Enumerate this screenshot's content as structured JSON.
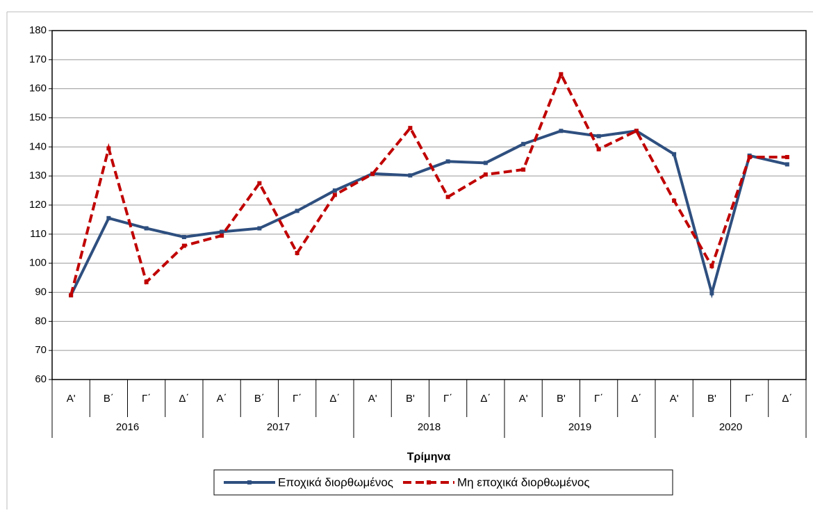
{
  "chart_data": {
    "type": "line",
    "x_label": "Τρίμηνα",
    "categories": [
      "A'",
      "Β΄",
      "Γ΄",
      "Δ΄",
      "Α΄",
      "Β΄",
      "Γ΄",
      "Δ΄",
      "Α'",
      "Β'",
      "Γ΄",
      "Δ΄",
      "Α'",
      "Β'",
      "Γ΄",
      "Δ΄",
      "Α'",
      "Β'",
      "Γ΄",
      "Δ΄"
    ],
    "years": [
      "2016",
      "2017",
      "2018",
      "2019",
      "2020"
    ],
    "series": [
      {
        "name": "Εποχικά διορθωμένος",
        "color": "#2e4f7f",
        "dash": false,
        "values": [
          89,
          115.5,
          112,
          109,
          110.8,
          112,
          118,
          125,
          130.8,
          130.2,
          135,
          134.5,
          141,
          145.5,
          143.7,
          145.5,
          137.5,
          89.7,
          137,
          134
        ]
      },
      {
        "name": "Μη εποχικά διορθωμένος",
        "color": "#c00000",
        "dash": true,
        "values": [
          89,
          139.5,
          93.5,
          106,
          109.5,
          127.5,
          103.5,
          123.5,
          130.7,
          146.5,
          122.8,
          130.5,
          132.2,
          165,
          139.2,
          145.5,
          121.5,
          99,
          136.5,
          136.5
        ]
      }
    ],
    "ylim": [
      60,
      180
    ],
    "yticks": [
      60,
      70,
      80,
      90,
      100,
      110,
      120,
      130,
      140,
      150,
      160,
      170,
      180
    ],
    "grid": true
  }
}
